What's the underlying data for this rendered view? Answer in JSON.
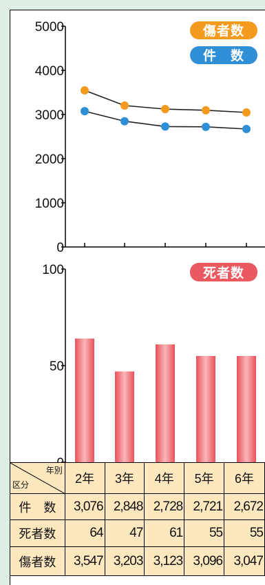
{
  "chart_data": [
    {
      "type": "line",
      "categories": [
        "2年",
        "3年",
        "4年",
        "5年",
        "6年"
      ],
      "ylim": [
        0,
        5000
      ],
      "yticks": [
        "0",
        "1000",
        "2000",
        "3000",
        "4000",
        "5000"
      ],
      "legend_position": "top-right",
      "series": [
        {
          "name": "傷者数",
          "values": [
            3547,
            3203,
            3123,
            3096,
            3047
          ],
          "color": "#f39a1f"
        },
        {
          "name": "件　数",
          "values": [
            3076,
            2848,
            2728,
            2721,
            2672
          ],
          "color": "#2f8fd6"
        }
      ]
    },
    {
      "type": "bar",
      "categories": [
        "2年",
        "3年",
        "4年",
        "5年",
        "6年"
      ],
      "ylim": [
        0,
        100
      ],
      "yticks": [
        "0",
        "50",
        "100"
      ],
      "legend_position": "top-right",
      "series": [
        {
          "name": "死者数",
          "values": [
            64,
            47,
            61,
            55,
            55
          ],
          "color": "#e85a5f"
        }
      ]
    }
  ],
  "table": {
    "corner_top": "年別",
    "corner_bottom": "区分",
    "years": [
      "2年",
      "3年",
      "4年",
      "5年",
      "6年"
    ],
    "rows": [
      {
        "label": "件　数",
        "values": [
          "3,076",
          "2,848",
          "2,728",
          "2,721",
          "2,672"
        ]
      },
      {
        "label": "死者数",
        "values": [
          "64",
          "47",
          "61",
          "55",
          "55"
        ]
      },
      {
        "label": "傷者数",
        "values": [
          "3,547",
          "3,203",
          "3,123",
          "3,096",
          "3,047"
        ]
      }
    ]
  },
  "colors": {
    "background": "#deeee4",
    "table_fill": "#fde7bf",
    "injured": "#f39a1f",
    "incidents": "#2f8fd6",
    "deaths": "#e85a5f"
  }
}
